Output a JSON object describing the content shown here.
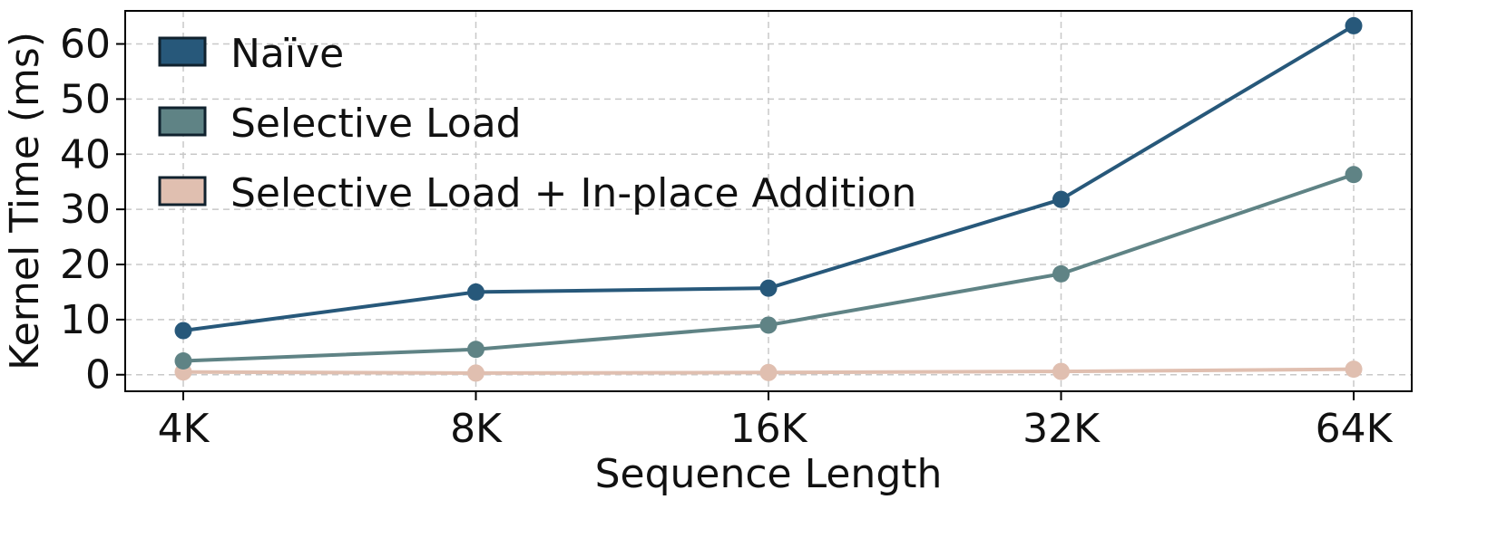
{
  "chart_data": {
    "type": "line",
    "title": "",
    "xlabel": "Sequence Length",
    "ylabel": "Kernel Time (ms)",
    "categories": [
      "4K",
      "8K",
      "16K",
      "32K",
      "64K"
    ],
    "ylim": [
      -3,
      66
    ],
    "yticks": [
      0,
      10,
      20,
      30,
      40,
      50,
      60
    ],
    "grid": true,
    "legend_position": "top-left",
    "series": [
      {
        "name": "Naïve",
        "color": "#27587a",
        "values": [
          8.0,
          15.0,
          15.7,
          31.8,
          63.3
        ]
      },
      {
        "name": "Selective Load",
        "color": "#5f8385",
        "values": [
          2.5,
          4.6,
          9.0,
          18.3,
          36.3
        ]
      },
      {
        "name": "Selective Load + In-place Addition",
        "color": "#e0bfb0",
        "values": [
          0.5,
          0.3,
          0.4,
          0.6,
          1.0
        ]
      }
    ]
  }
}
